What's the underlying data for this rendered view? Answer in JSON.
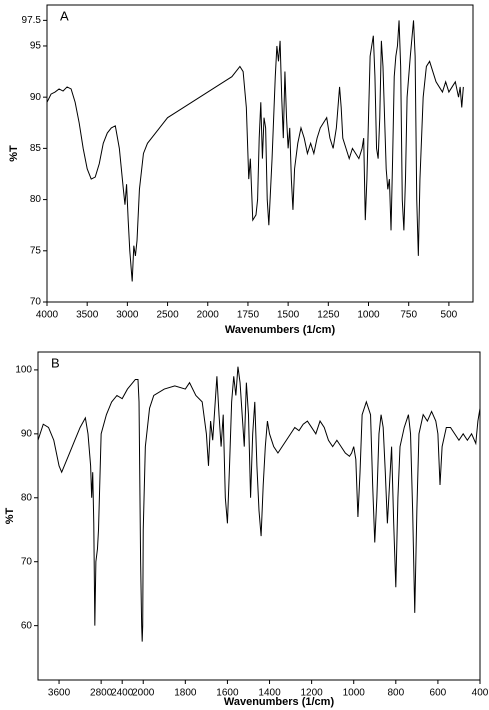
{
  "chart_data": [
    {
      "type": "line",
      "title": "A",
      "x_label": "Wavenumbers (1/cm)",
      "y_label": "%T",
      "color": "#000000",
      "x_scale_break": 2000,
      "x_scale_ratio": 2,
      "xlim": [
        4000,
        350
      ],
      "ylim": [
        70,
        99
      ],
      "xticks": [
        4000,
        3500,
        3000,
        2500,
        2000,
        1750,
        1500,
        1250,
        1000,
        750,
        500
      ],
      "yticks": [
        70,
        75,
        80,
        85,
        90,
        95,
        97.5
      ],
      "x": [
        4000,
        3950,
        3900,
        3850,
        3800,
        3750,
        3700,
        3650,
        3600,
        3550,
        3500,
        3450,
        3400,
        3350,
        3300,
        3250,
        3200,
        3150,
        3100,
        3050,
        3030,
        3010,
        2990,
        2970,
        2950,
        2940,
        2920,
        2900,
        2880,
        2850,
        2800,
        2750,
        2700,
        2600,
        2500,
        2400,
        2300,
        2200,
        2100,
        2000,
        1950,
        1900,
        1850,
        1800,
        1780,
        1760,
        1745,
        1735,
        1720,
        1700,
        1690,
        1680,
        1670,
        1660,
        1650,
        1640,
        1630,
        1620,
        1600,
        1580,
        1570,
        1560,
        1550,
        1540,
        1530,
        1520,
        1510,
        1500,
        1490,
        1480,
        1470,
        1460,
        1440,
        1420,
        1400,
        1380,
        1360,
        1340,
        1320,
        1300,
        1280,
        1260,
        1240,
        1220,
        1200,
        1180,
        1170,
        1160,
        1140,
        1120,
        1100,
        1080,
        1060,
        1040,
        1030,
        1020,
        1010,
        1000,
        990,
        970,
        960,
        950,
        940,
        930,
        920,
        910,
        900,
        890,
        880,
        870,
        860,
        850,
        840,
        830,
        820,
        810,
        800,
        790,
        780,
        770,
        760,
        740,
        720,
        710,
        700,
        690,
        680,
        660,
        640,
        620,
        600,
        580,
        560,
        540,
        520,
        500,
        480,
        460,
        440,
        430,
        420,
        410
      ],
      "values": [
        89.5,
        90.3,
        90.5,
        90.8,
        90.6,
        91,
        90.8,
        89.5,
        87.5,
        85,
        83,
        82,
        82.2,
        83.5,
        85.5,
        86.5,
        87,
        87.2,
        85,
        81,
        79.5,
        81.5,
        78,
        75,
        73,
        72,
        75.5,
        74.5,
        76,
        81,
        84.5,
        85.5,
        86,
        87,
        88,
        88.5,
        89,
        89.5,
        90,
        90.5,
        91,
        91.5,
        92,
        93,
        92.5,
        89,
        82,
        84,
        78,
        78.5,
        80,
        86,
        89.5,
        84,
        88,
        87,
        80,
        77.5,
        84,
        92,
        95,
        93.5,
        95.5,
        90,
        86,
        92.5,
        88,
        85,
        87,
        82,
        79,
        83,
        85.5,
        87,
        86,
        84.5,
        85.5,
        84.5,
        86,
        87,
        87.5,
        88,
        86,
        85,
        87,
        91,
        89,
        86,
        85,
        84,
        85,
        84.5,
        84,
        85,
        86,
        78,
        82,
        88,
        94,
        96,
        92,
        85,
        84,
        88,
        95.5,
        93,
        88,
        83,
        81,
        82,
        77,
        84,
        92,
        94,
        95,
        97.5,
        93,
        80,
        77,
        82,
        90,
        94,
        97.5,
        94,
        80,
        74.5,
        82,
        90,
        93,
        93.5,
        92.5,
        91.5,
        91,
        90.5,
        91.5,
        90.5,
        91,
        91.5,
        90,
        91,
        89,
        91
      ]
    },
    {
      "type": "line",
      "title": "B",
      "x_label": "Wavenumbers (1/cm)",
      "y_label": "%T",
      "color": "#000000",
      "x_scale_break": 2000,
      "x_scale_ratio": 4,
      "xlim": [
        4000,
        400
      ],
      "ylim": [
        51.5,
        102.8
      ],
      "xticks": [
        3600,
        2800,
        2400,
        2000,
        1800,
        1600,
        1400,
        1200,
        1000,
        800,
        600,
        400
      ],
      "yticks": [
        60,
        70,
        80,
        90,
        100
      ],
      "x": [
        4000,
        3900,
        3800,
        3700,
        3600,
        3550,
        3500,
        3400,
        3300,
        3200,
        3100,
        3050,
        3000,
        2980,
        2960,
        2940,
        2920,
        2900,
        2870,
        2850,
        2800,
        2700,
        2600,
        2500,
        2400,
        2300,
        2200,
        2150,
        2100,
        2080,
        2050,
        2030,
        2020,
        2010,
        2000,
        1990,
        1970,
        1950,
        1900,
        1850,
        1800,
        1780,
        1750,
        1720,
        1700,
        1690,
        1680,
        1670,
        1660,
        1650,
        1640,
        1630,
        1620,
        1610,
        1600,
        1590,
        1580,
        1570,
        1560,
        1550,
        1540,
        1530,
        1520,
        1510,
        1500,
        1490,
        1480,
        1470,
        1460,
        1450,
        1440,
        1430,
        1420,
        1410,
        1400,
        1380,
        1360,
        1340,
        1320,
        1300,
        1280,
        1260,
        1240,
        1220,
        1200,
        1180,
        1160,
        1140,
        1120,
        1100,
        1080,
        1060,
        1040,
        1020,
        1010,
        1000,
        990,
        980,
        970,
        960,
        940,
        920,
        910,
        900,
        890,
        880,
        870,
        860,
        850,
        840,
        830,
        820,
        810,
        800,
        790,
        780,
        760,
        740,
        730,
        720,
        710,
        700,
        690,
        670,
        650,
        630,
        610,
        600,
        590,
        580,
        560,
        540,
        520,
        500,
        480,
        460,
        440,
        420,
        410,
        400
      ],
      "values": [
        89,
        91.5,
        91,
        89,
        85,
        84,
        85,
        87,
        89,
        91,
        92.5,
        90,
        85,
        80,
        84,
        76,
        60,
        70,
        72,
        75,
        90,
        93,
        95,
        96,
        95.5,
        97,
        98,
        98.5,
        98.5,
        95,
        70,
        60,
        57.5,
        60,
        75,
        88,
        94,
        96,
        97,
        97.5,
        97,
        98,
        96,
        95,
        90,
        85,
        92,
        89,
        94,
        99,
        93,
        88,
        93,
        80,
        76,
        85,
        95,
        99,
        96,
        100.5,
        98,
        93,
        88,
        98,
        93,
        80,
        90,
        95,
        85,
        78,
        74,
        82,
        88,
        92,
        90,
        88,
        87,
        88,
        89,
        90,
        91,
        90.5,
        91.5,
        92,
        91,
        90,
        92,
        91,
        89,
        88,
        89,
        88,
        87,
        86.5,
        87,
        88,
        86,
        77,
        84,
        93,
        95,
        93,
        82,
        73,
        80,
        90,
        93,
        91,
        84,
        76,
        82,
        88,
        76,
        66,
        80,
        88,
        91,
        93,
        90,
        78,
        62,
        78,
        90,
        93,
        92,
        93.5,
        92,
        90,
        82,
        88,
        91,
        91,
        90,
        89,
        90,
        89,
        90,
        88.5,
        92,
        94
      ]
    }
  ]
}
